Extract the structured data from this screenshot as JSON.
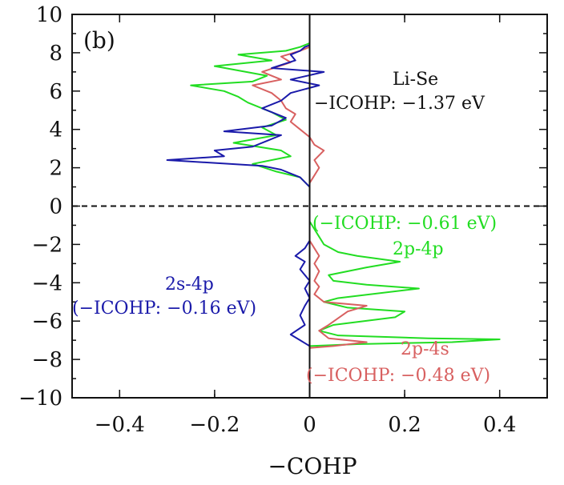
{
  "chart_data": {
    "type": "line",
    "panel_label": "(b)",
    "xlabel": "−COHP",
    "ylabel": "",
    "xlim": [
      -0.5,
      0.5
    ],
    "ylim": [
      -10,
      10
    ],
    "x_ticks": [
      -0.4,
      -0.2,
      0,
      0.2,
      0.4
    ],
    "x_tick_labels": [
      "−0.4",
      "−0.2",
      "0",
      "0.2",
      "0.4"
    ],
    "y_ticks": [
      -10,
      -8,
      -6,
      -4,
      -2,
      0,
      2,
      4,
      6,
      8,
      10
    ],
    "y_tick_labels": [
      "−10",
      "−8",
      "−6",
      "−4",
      "−2",
      "0",
      "2",
      "4",
      "6",
      "8",
      "10"
    ],
    "grid": false,
    "fermi_level": 0,
    "annotations": {
      "total_title": "Li-Se",
      "total_value": "−ICOHP: −1.37 eV",
      "s_p_title": "2s-4p",
      "s_p_value": "(−ICOHP: −0.16 eV)",
      "p_p_value": "(−ICOHP: −0.61 eV)",
      "p_p_title": "2p-4p",
      "p_s_title": "2p-4s",
      "p_s_value": "(−ICOHP: −0.48 eV)"
    },
    "series": [
      {
        "color": "#22dd22",
        "points": [
          [
            0,
            -7.3
          ],
          [
            0.1,
            -7.2
          ],
          [
            0.3,
            -7.1
          ],
          [
            0.4,
            -6.95
          ],
          [
            0.25,
            -6.9
          ],
          [
            0.06,
            -6.75
          ],
          [
            0.02,
            -6.5
          ],
          [
            0.05,
            -6.2
          ],
          [
            0.18,
            -5.8
          ],
          [
            0.2,
            -5.5
          ],
          [
            0.08,
            -5.3
          ],
          [
            0.03,
            -5.0
          ],
          [
            0.06,
            -4.8
          ],
          [
            0.23,
            -4.3
          ],
          [
            0.12,
            -4.1
          ],
          [
            0.05,
            -3.9
          ],
          [
            0.04,
            -3.6
          ],
          [
            0.12,
            -3.2
          ],
          [
            0.19,
            -2.9
          ],
          [
            0.1,
            -2.6
          ],
          [
            0.06,
            -2.4
          ],
          [
            0.03,
            -2.0
          ],
          [
            0.02,
            -1.6
          ],
          [
            0.01,
            -1.2
          ],
          [
            0.0,
            -0.8
          ],
          [
            0.0,
            1.0
          ],
          [
            -0.02,
            1.5
          ],
          [
            -0.07,
            1.8
          ],
          [
            -0.12,
            2.2
          ],
          [
            -0.04,
            2.6
          ],
          [
            -0.06,
            2.9
          ],
          [
            -0.16,
            3.3
          ],
          [
            -0.07,
            3.7
          ],
          [
            -0.1,
            4.1
          ],
          [
            -0.05,
            4.5
          ],
          [
            -0.08,
            4.9
          ],
          [
            -0.13,
            5.4
          ],
          [
            -0.15,
            5.7
          ],
          [
            -0.18,
            6.0
          ],
          [
            -0.25,
            6.3
          ],
          [
            -0.12,
            6.5
          ],
          [
            -0.09,
            6.8
          ],
          [
            -0.2,
            7.3
          ],
          [
            -0.08,
            7.6
          ],
          [
            -0.15,
            7.9
          ],
          [
            -0.05,
            8.1
          ],
          [
            -0.02,
            8.3
          ],
          [
            0,
            8.5
          ]
        ]
      },
      {
        "color": "#d86060",
        "points": [
          [
            0,
            -7.4
          ],
          [
            0.05,
            -7.3
          ],
          [
            0.12,
            -7.1
          ],
          [
            0.04,
            -6.9
          ],
          [
            0.02,
            -6.5
          ],
          [
            0.04,
            -6.2
          ],
          [
            0.08,
            -5.5
          ],
          [
            0.12,
            -5.2
          ],
          [
            0.03,
            -5.0
          ],
          [
            0.01,
            -4.6
          ],
          [
            0.02,
            -4.2
          ],
          [
            0.01,
            -3.9
          ],
          [
            0.02,
            -3.4
          ],
          [
            0.01,
            -3.0
          ],
          [
            0.02,
            -2.6
          ],
          [
            0.01,
            -2.2
          ],
          [
            0,
            -1.8
          ],
          [
            0,
            1.2
          ],
          [
            0.01,
            1.6
          ],
          [
            0.02,
            2.0
          ],
          [
            0.01,
            2.4
          ],
          [
            0.03,
            2.9
          ],
          [
            0.01,
            3.2
          ],
          [
            0,
            3.6
          ],
          [
            -0.02,
            4.0
          ],
          [
            -0.04,
            4.4
          ],
          [
            -0.03,
            4.8
          ],
          [
            -0.05,
            5.1
          ],
          [
            -0.06,
            5.5
          ],
          [
            -0.08,
            5.9
          ],
          [
            -0.12,
            6.3
          ],
          [
            -0.06,
            6.6
          ],
          [
            -0.1,
            7.0
          ],
          [
            -0.04,
            7.5
          ],
          [
            -0.06,
            7.8
          ],
          [
            -0.02,
            8.1
          ],
          [
            0,
            8.3
          ]
        ]
      },
      {
        "color": "#1a1aaa",
        "points": [
          [
            0,
            -7.3
          ],
          [
            -0.02,
            -7.0
          ],
          [
            -0.04,
            -6.7
          ],
          [
            -0.01,
            -6.2
          ],
          [
            -0.02,
            -5.7
          ],
          [
            -0.01,
            -5.2
          ],
          [
            0,
            -4.8
          ],
          [
            -0.01,
            -4.3
          ],
          [
            0,
            -3.9
          ],
          [
            -0.02,
            -3.3
          ],
          [
            -0.01,
            -2.9
          ],
          [
            -0.03,
            -2.6
          ],
          [
            -0.01,
            -2.2
          ],
          [
            0,
            -1.8
          ],
          [
            0,
            -1.2
          ],
          [
            0,
            1.0
          ],
          [
            -0.02,
            1.5
          ],
          [
            -0.06,
            1.9
          ],
          [
            -0.1,
            2.1
          ],
          [
            -0.3,
            2.4
          ],
          [
            -0.18,
            2.6
          ],
          [
            -0.2,
            2.9
          ],
          [
            -0.12,
            3.1
          ],
          [
            -0.09,
            3.4
          ],
          [
            -0.06,
            3.7
          ],
          [
            -0.18,
            3.9
          ],
          [
            -0.08,
            4.2
          ],
          [
            -0.05,
            4.6
          ],
          [
            -0.1,
            5.1
          ],
          [
            -0.06,
            5.5
          ],
          [
            -0.04,
            5.9
          ],
          [
            0.02,
            6.3
          ],
          [
            -0.04,
            6.6
          ],
          [
            0.03,
            7.0
          ],
          [
            -0.08,
            7.2
          ],
          [
            -0.03,
            7.6
          ],
          [
            -0.04,
            7.9
          ],
          [
            -0.02,
            8.1
          ],
          [
            -0.01,
            8.3
          ],
          [
            0,
            8.4
          ]
        ]
      }
    ]
  }
}
